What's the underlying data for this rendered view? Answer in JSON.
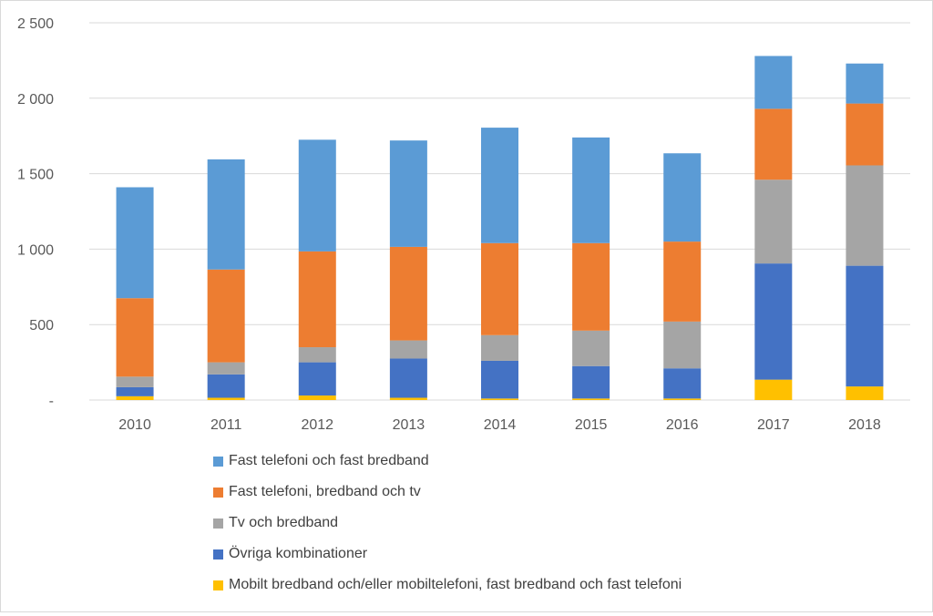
{
  "chart_data": {
    "type": "bar",
    "stacked": true,
    "categories": [
      "2010",
      "2011",
      "2012",
      "2013",
      "2014",
      "2015",
      "2016",
      "2017",
      "2018"
    ],
    "ylim": [
      0,
      2500
    ],
    "yticks": [
      {
        "value": 0,
        "label": "-"
      },
      {
        "value": 500,
        "label": "500"
      },
      {
        "value": 1000,
        "label": "1 000"
      },
      {
        "value": 1500,
        "label": "1 500"
      },
      {
        "value": 2000,
        "label": "2 000"
      },
      {
        "value": 2500,
        "label": "2 500"
      }
    ],
    "grid": true,
    "legend_position": "bottom",
    "series": [
      {
        "name": "Mobilt bredband och/eller mobiltelefoni, fast bredband och fast telefoni",
        "color": "#FFC000",
        "values": [
          25,
          15,
          30,
          15,
          10,
          10,
          10,
          135,
          90
        ]
      },
      {
        "name": "Övriga kombinationer",
        "color": "#4472C4",
        "values": [
          60,
          155,
          220,
          260,
          250,
          215,
          200,
          770,
          800
        ]
      },
      {
        "name": "Tv och bredband",
        "color": "#A5A5A5",
        "values": [
          70,
          80,
          100,
          120,
          170,
          235,
          310,
          555,
          665
        ]
      },
      {
        "name": "Fast telefoni, bredband och tv",
        "color": "#ED7D31",
        "values": [
          520,
          615,
          635,
          620,
          610,
          580,
          530,
          470,
          410
        ]
      },
      {
        "name": "Fast telefoni och fast bredband",
        "color": "#5B9BD5",
        "values": [
          735,
          730,
          740,
          705,
          765,
          700,
          585,
          350,
          265
        ]
      }
    ],
    "legend_order": [
      4,
      3,
      2,
      1,
      0
    ]
  }
}
